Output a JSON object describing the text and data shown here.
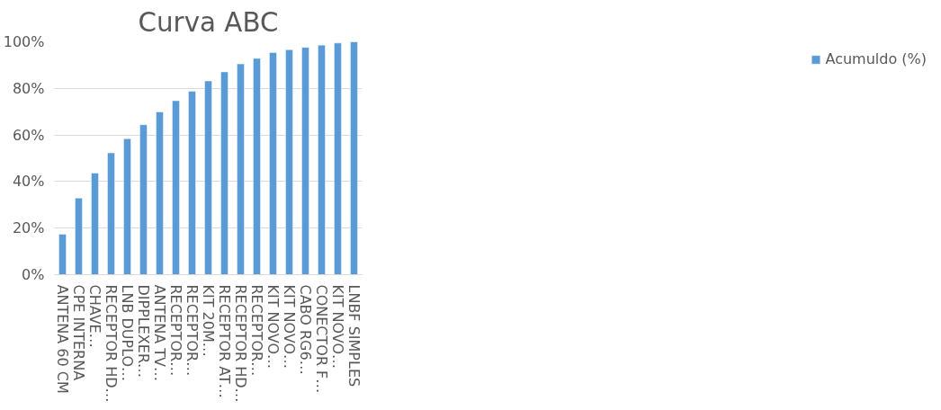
{
  "chart_data": {
    "type": "bar",
    "title": "Curva ABC",
    "categories": [
      "ANTENA 60 CM",
      "CPE INTERNA",
      "CHAVE…",
      "RECEPTOR HD…",
      "LNB DUPLO…",
      "DIPPLEXER…",
      "ANTENA TV…",
      "RECEPTOR…",
      "RECEPTOR…",
      "KIT 20M…",
      "RECEPTOR AT…",
      "RECEPTOR HD…",
      "RECEPTOR…",
      "KIT NOVO…",
      "KIT NOVO…",
      "CABO RG6…",
      "CONECTOR F…",
      "KIT NOVO…",
      "LNBF SIMPLES"
    ],
    "series": [
      {
        "name": "Acumuldo (%)",
        "color": "#5b9bd5",
        "values": [
          17.4,
          32.9,
          43.6,
          52.3,
          58.4,
          64.4,
          69.9,
          74.7,
          78.8,
          83.2,
          87.1,
          90.5,
          92.9,
          95.4,
          96.6,
          97.6,
          98.6,
          99.5,
          100
        ]
      }
    ],
    "ylim": [
      0,
      100
    ],
    "yticks": [
      {
        "value": 0,
        "label": "0%"
      },
      {
        "value": 20,
        "label": "20%"
      },
      {
        "value": 40,
        "label": "40%"
      },
      {
        "value": 60,
        "label": "60%"
      },
      {
        "value": 80,
        "label": "80%"
      },
      {
        "value": 100,
        "label": "100%"
      }
    ],
    "grid": "y",
    "legend": "right"
  }
}
